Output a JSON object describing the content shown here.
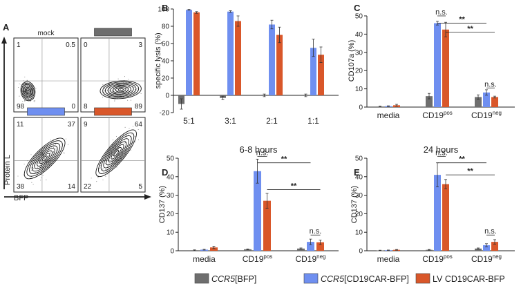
{
  "colors": {
    "gray": "#6e6e6e",
    "blue": "#6f8ff0",
    "orange": "#d9572a",
    "axis": "#222222"
  },
  "panelA": {
    "letter": "A",
    "ylabel": "Protein L",
    "xlabel": "BFP",
    "plots": [
      {
        "title": "mock",
        "q": [
          "1",
          "0.5",
          "98",
          "0"
        ]
      },
      {
        "title_color": "gray",
        "q": [
          "0",
          "3",
          "8",
          "89"
        ]
      },
      {
        "title_color": "blue",
        "q": [
          "11",
          "37",
          "38",
          "14"
        ]
      },
      {
        "title_color": "orange",
        "q": [
          "9",
          "64",
          "22",
          "5"
        ]
      }
    ]
  },
  "legend": {
    "items": [
      {
        "color": "gray",
        "label": "CCR5[BFP]",
        "italic": "CCR5",
        "rest": "[BFP]"
      },
      {
        "color": "blue",
        "label": "CCR5[CD19CAR-BFP]",
        "italic": "CCR5",
        "rest": "[CD19CAR-BFP]"
      },
      {
        "color": "orange",
        "label": "LV CD19CAR-BFP",
        "italic": "",
        "rest": "LV CD19CAR-BFP"
      }
    ]
  },
  "chart_data": [
    {
      "panel": "B",
      "type": "bar",
      "title": "",
      "ylabel": "specific lysis (%)",
      "xlabel": "",
      "ylim": [
        -20,
        100
      ],
      "yticks": [
        -20,
        0,
        20,
        40,
        60,
        80,
        100
      ],
      "categories": [
        "5:1",
        "3:1",
        "2:1",
        "1:1"
      ],
      "series": [
        {
          "color": "gray",
          "values": [
            -10,
            -3,
            0,
            0
          ],
          "errors": [
            6,
            2,
            1.5,
            1.5
          ]
        },
        {
          "color": "blue",
          "values": [
            99,
            97,
            82,
            55
          ],
          "errors": [
            0.5,
            1,
            5,
            10
          ]
        },
        {
          "color": "orange",
          "values": [
            96,
            86,
            70,
            47
          ],
          "errors": [
            1,
            6,
            9,
            9
          ]
        }
      ],
      "annotations": []
    },
    {
      "panel": "C",
      "type": "bar",
      "title": "",
      "ylabel": "CD107a (%)",
      "xlabel": "",
      "ylim": [
        0,
        50
      ],
      "yticks": [
        0,
        10,
        20,
        30,
        40,
        50
      ],
      "categories": [
        {
          "base": "media",
          "sup": ""
        },
        {
          "base": "CD19",
          "sup": "pos"
        },
        {
          "base": "CD19",
          "sup": "neg"
        }
      ],
      "series": [
        {
          "color": "gray",
          "values": [
            0.3,
            6,
            5.5
          ],
          "errors": [
            0.2,
            1.5,
            1.2
          ]
        },
        {
          "color": "blue",
          "values": [
            0.5,
            46,
            8
          ],
          "errors": [
            0.2,
            1,
            1.5
          ]
        },
        {
          "color": "orange",
          "values": [
            1,
            42.5,
            5.5
          ],
          "errors": [
            0.5,
            4,
            0.5
          ]
        }
      ],
      "annotations": [
        {
          "label": "n.s.",
          "from": [
            1,
            1
          ],
          "to": [
            1,
            2
          ],
          "y": 50
        },
        {
          "label": "**",
          "from": [
            1,
            1
          ],
          "to": [
            2,
            1
          ],
          "y": 46
        },
        {
          "label": "**",
          "from": [
            1,
            2
          ],
          "to": [
            2,
            2
          ],
          "y": 41
        },
        {
          "label": "n.s.",
          "from": [
            2,
            1
          ],
          "to": [
            2,
            2
          ],
          "y": 10.5
        }
      ]
    },
    {
      "panel": "D",
      "type": "bar",
      "title": "6-8 hours",
      "ylabel": "CD137 (%)",
      "xlabel": "",
      "ylim": [
        0,
        50
      ],
      "yticks": [
        0,
        10,
        20,
        30,
        40,
        50
      ],
      "categories": [
        {
          "base": "media",
          "sup": ""
        },
        {
          "base": "CD19",
          "sup": "pos"
        },
        {
          "base": "CD19",
          "sup": "neg"
        }
      ],
      "series": [
        {
          "color": "gray",
          "values": [
            0.3,
            0.8,
            1.2
          ],
          "errors": [
            0.2,
            0.2,
            0.3
          ]
        },
        {
          "color": "blue",
          "values": [
            0.6,
            43,
            4.8
          ],
          "errors": [
            0.2,
            6.5,
            1.5
          ]
        },
        {
          "color": "orange",
          "values": [
            1.8,
            27,
            4.6
          ],
          "errors": [
            0.6,
            4,
            1.2
          ]
        }
      ],
      "annotations": [
        {
          "label": "n.s.",
          "from": [
            1,
            1
          ],
          "to": [
            1,
            2
          ],
          "y": 51
        },
        {
          "label": "**",
          "from": [
            1,
            1
          ],
          "to": [
            2,
            1
          ],
          "y": 47.5
        },
        {
          "label": "**",
          "from": [
            1,
            2
          ],
          "to": [
            2,
            2
          ],
          "y": 33
        },
        {
          "label": "n.s.",
          "from": [
            2,
            1
          ],
          "to": [
            2,
            2
          ],
          "y": 8.5
        }
      ]
    },
    {
      "panel": "E",
      "type": "bar",
      "title": "24 hours",
      "ylabel": "CD137 (%)",
      "xlabel": "",
      "ylim": [
        0,
        50
      ],
      "yticks": [
        0,
        10,
        20,
        30,
        40,
        50
      ],
      "categories": [
        {
          "base": "media",
          "sup": ""
        },
        {
          "base": "CD19",
          "sup": "pos"
        },
        {
          "base": "CD19",
          "sup": "neg"
        }
      ],
      "series": [
        {
          "color": "gray",
          "values": [
            0.2,
            0.5,
            1.2
          ],
          "errors": [
            0.1,
            0.2,
            0.3
          ]
        },
        {
          "color": "blue",
          "values": [
            0.3,
            41,
            3
          ],
          "errors": [
            0.1,
            6.5,
            0.8
          ]
        },
        {
          "color": "orange",
          "values": [
            0.5,
            36,
            4.8
          ],
          "errors": [
            0.2,
            2.5,
            1.2
          ]
        }
      ],
      "annotations": [
        {
          "label": "n.s.",
          "from": [
            1,
            1
          ],
          "to": [
            1,
            2
          ],
          "y": 51
        },
        {
          "label": "**",
          "from": [
            1,
            1
          ],
          "to": [
            2,
            1
          ],
          "y": 47.5
        },
        {
          "label": "**",
          "from": [
            1,
            2
          ],
          "to": [
            2,
            2
          ],
          "y": 41
        },
        {
          "label": "n.s.",
          "from": [
            2,
            1
          ],
          "to": [
            2,
            2
          ],
          "y": 8.5
        }
      ]
    }
  ]
}
